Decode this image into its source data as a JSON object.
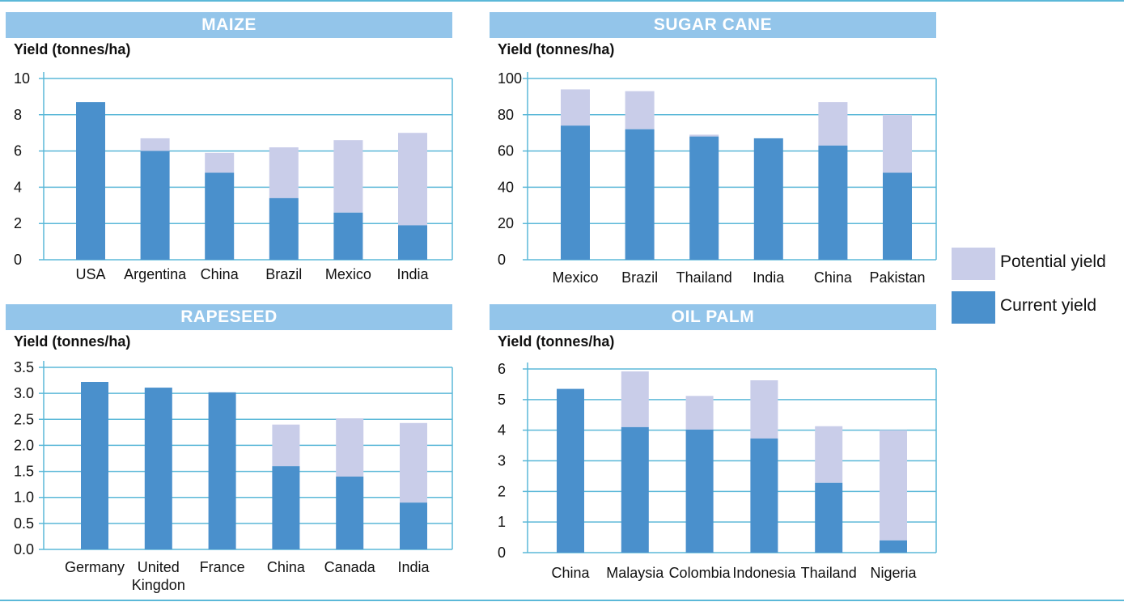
{
  "colors": {
    "current": "#4a90cc",
    "potential": "#c9cde9",
    "grid": "#5bb8d8",
    "title_bg": "#93c5ea"
  },
  "legend": {
    "potential_label": "Potential yield",
    "current_label": "Current yield"
  },
  "chart_data": [
    {
      "type": "bar",
      "title": "MAIZE",
      "ylabel": "Yield (tonnes/ha)",
      "ylim": [
        0,
        10
      ],
      "yticks": [
        "0",
        "2",
        "4",
        "6",
        "8",
        "10"
      ],
      "categories": [
        "USA",
        "Argentina",
        "China",
        "Brazil",
        "Mexico",
        "India"
      ],
      "series": [
        {
          "name": "Current yield",
          "values": [
            8.7,
            6.0,
            4.8,
            3.4,
            2.6,
            1.9
          ]
        },
        {
          "name": "Potential yield",
          "values": [
            8.7,
            6.7,
            5.9,
            6.2,
            6.6,
            7.0
          ]
        }
      ]
    },
    {
      "type": "bar",
      "title": "SUGAR CANE",
      "ylabel": "Yield (tonnes/ha)",
      "ylim": [
        0,
        100
      ],
      "yticks": [
        "0",
        "20",
        "40",
        "60",
        "80",
        "100"
      ],
      "categories": [
        "Mexico",
        "Brazil",
        "Thailand",
        "India",
        "China",
        "Pakistan"
      ],
      "series": [
        {
          "name": "Current yield",
          "values": [
            74,
            72,
            68,
            67,
            63,
            48
          ]
        },
        {
          "name": "Potential yield",
          "values": [
            94,
            93,
            69,
            67,
            87,
            80
          ]
        }
      ]
    },
    {
      "type": "bar",
      "title": "RAPESEED",
      "ylabel": "Yield (tonnes/ha)",
      "ylim": [
        0,
        3.5
      ],
      "yticks": [
        "0.0",
        "0.5",
        "1.0",
        "1.5",
        "2.0",
        "2.5",
        "3.0",
        "3.5"
      ],
      "categories": [
        "Germany",
        "United\nKingdon",
        "France",
        "China",
        "Canada",
        "India"
      ],
      "series": [
        {
          "name": "Current yield",
          "values": [
            3.22,
            3.11,
            3.02,
            1.6,
            1.4,
            0.9
          ]
        },
        {
          "name": "Potential yield",
          "values": [
            3.22,
            3.11,
            3.02,
            2.4,
            2.52,
            2.43
          ]
        }
      ]
    },
    {
      "type": "bar",
      "title": "OIL PALM",
      "ylabel": "Yield (tonnes/ha)",
      "ylim": [
        0,
        6
      ],
      "yticks": [
        "0",
        "1",
        "2",
        "3",
        "4",
        "5",
        "6"
      ],
      "categories": [
        "China",
        "Malaysia",
        "Colombia",
        "Indonesia",
        "Thailand",
        "Nigeria"
      ],
      "series": [
        {
          "name": "Current yield",
          "values": [
            5.35,
            4.1,
            4.02,
            3.73,
            2.28,
            0.4
          ]
        },
        {
          "name": "Potential yield",
          "values": [
            5.35,
            5.92,
            5.12,
            5.63,
            4.13,
            4.0
          ]
        }
      ]
    }
  ]
}
